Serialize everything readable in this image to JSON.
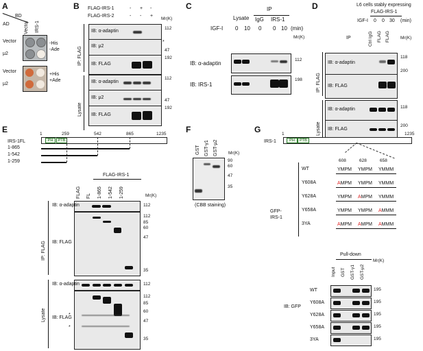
{
  "panels": {
    "A": {
      "letter": "A",
      "bd": "BD",
      "ad": "AD",
      "cols": [
        "Vector",
        "IRS-1"
      ],
      "rows": [
        "Vector",
        "μ2",
        "Vector",
        "μ2"
      ],
      "cond1": [
        "-His",
        "-Ade"
      ],
      "cond2": [
        "+His",
        "+Ade"
      ]
    },
    "B": {
      "letter": "B",
      "flag1": "FLAG-IRS-1",
      "flag2": "FLAG-IRS-2",
      "signs1": [
        "-",
        "+",
        "-"
      ],
      "signs2": [
        "-",
        "-",
        "+"
      ],
      "mr": "Mr(K)",
      "ip": "IP: FLAG",
      "lys": "Lysate",
      "ib": [
        "IB: α-adaptin",
        "IB: μ2",
        "IB: FLAG",
        "IB: α-adaptin",
        "IB: μ2",
        "IB: FLAG"
      ],
      "mw": [
        "112",
        "47",
        "192",
        "112",
        "47",
        "192"
      ],
      "star": "*"
    },
    "C": {
      "letter": "C",
      "ip": "IP",
      "lysate": "Lysate",
      "igg": "IgG",
      "irs1": "IRS-1",
      "igf": "IGF-I",
      "times": [
        "0",
        "10",
        "0",
        "0",
        "10"
      ],
      "min": "(min)",
      "mr": "Mr(K)",
      "ib": [
        "IB: α-adaptin",
        "IB: IRS-1"
      ],
      "mw": [
        "112",
        "198"
      ]
    },
    "D": {
      "letter": "D",
      "title1": "L6 cells stably expressing",
      "title2": "FLAG-IRS-1",
      "igf": "IGF-I",
      "times": [
        "0",
        "0",
        "30"
      ],
      "min": "(min)",
      "ip": "IP",
      "lanes": [
        "Ctrl IgG",
        "FLAG",
        "FLAG"
      ],
      "mr": "Mr(K)",
      "ipflag": "IP: FLAG",
      "lys": "Lysate",
      "ib": [
        "IB: α-adaptin",
        "IB: FLAG",
        "IB: α-adaptin",
        "IB: FLAG"
      ],
      "mw": [
        "118",
        "200",
        "118",
        "200"
      ]
    },
    "E": {
      "letter": "E",
      "fl": "IRS-1FL",
      "ticks": [
        "1",
        "259",
        "542",
        "865",
        "1235"
      ],
      "pts": [
        "1-865",
        "1-542",
        "1-259"
      ],
      "ph": "PH",
      "ptb": "PTB",
      "flag": "FLAG-IRS-1",
      "lanes": [
        "FLAG",
        "FL",
        "1-865",
        "1-542",
        "1-259"
      ],
      "mr": "Mr(K)",
      "ip": "IP: FLAG",
      "lys": "Lysate",
      "ib": [
        "IB: α-adaptin",
        "IB: FLAG",
        "IB: α-adaptin",
        "IB: FLAG"
      ],
      "mw1": [
        "112"
      ],
      "mw2": [
        "112",
        "85",
        "60",
        "47",
        "35"
      ],
      "mw3": [
        "112"
      ],
      "mw4": [
        "112",
        "85",
        "60",
        "47",
        "35"
      ],
      "star": "*"
    },
    "F": {
      "letter": "F",
      "lanes": [
        "GST",
        "GST-γ1",
        "GST-μ2"
      ],
      "mr": "Mr(K)",
      "mw": [
        "90",
        "60",
        "47",
        "35"
      ],
      "caption": "(CBB staining)"
    },
    "G": {
      "letter": "G",
      "irs": "IRS-1",
      "ticks": [
        "1",
        "1235"
      ],
      "ph": "PH",
      "ptb": "PTB",
      "pos": [
        "608",
        "628",
        "658"
      ],
      "gfp": "GFP-",
      "gfp2": "IRS-1",
      "muts": [
        {
          "name": "WT",
          "m1": [
            "",
            "YMPM"
          ],
          "m2": [
            "",
            "YMPM"
          ],
          "m3": [
            "",
            "YMMM"
          ]
        },
        {
          "name": "Y608A",
          "m1": [
            "A",
            "MPM"
          ],
          "m2": [
            "",
            "YMPM"
          ],
          "m3": [
            "",
            "YMMM"
          ]
        },
        {
          "name": "Y628A",
          "m1": [
            "",
            "YMPM"
          ],
          "m2": [
            "A",
            "MPM"
          ],
          "m3": [
            "",
            "YMMM"
          ]
        },
        {
          "name": "Y658A",
          "m1": [
            "",
            "YMPM"
          ],
          "m2": [
            "",
            "YMPM"
          ],
          "m3": [
            "A",
            "MMM"
          ]
        },
        {
          "name": "3YA",
          "m1": [
            "A",
            "MPM"
          ],
          "m2": [
            "A",
            "MPM"
          ],
          "m3": [
            "A",
            "MMM"
          ]
        }
      ],
      "pulldown": "Pull-down",
      "lanes": [
        "Input",
        "GST",
        "GST-γ1",
        "GST-μ2"
      ],
      "mr": "Mr(K)",
      "ibgfp": "IB: GFP",
      "rows": [
        "WT",
        "Y608A",
        "Y628A",
        "Y658A",
        "3YA"
      ],
      "mw": "195"
    }
  }
}
